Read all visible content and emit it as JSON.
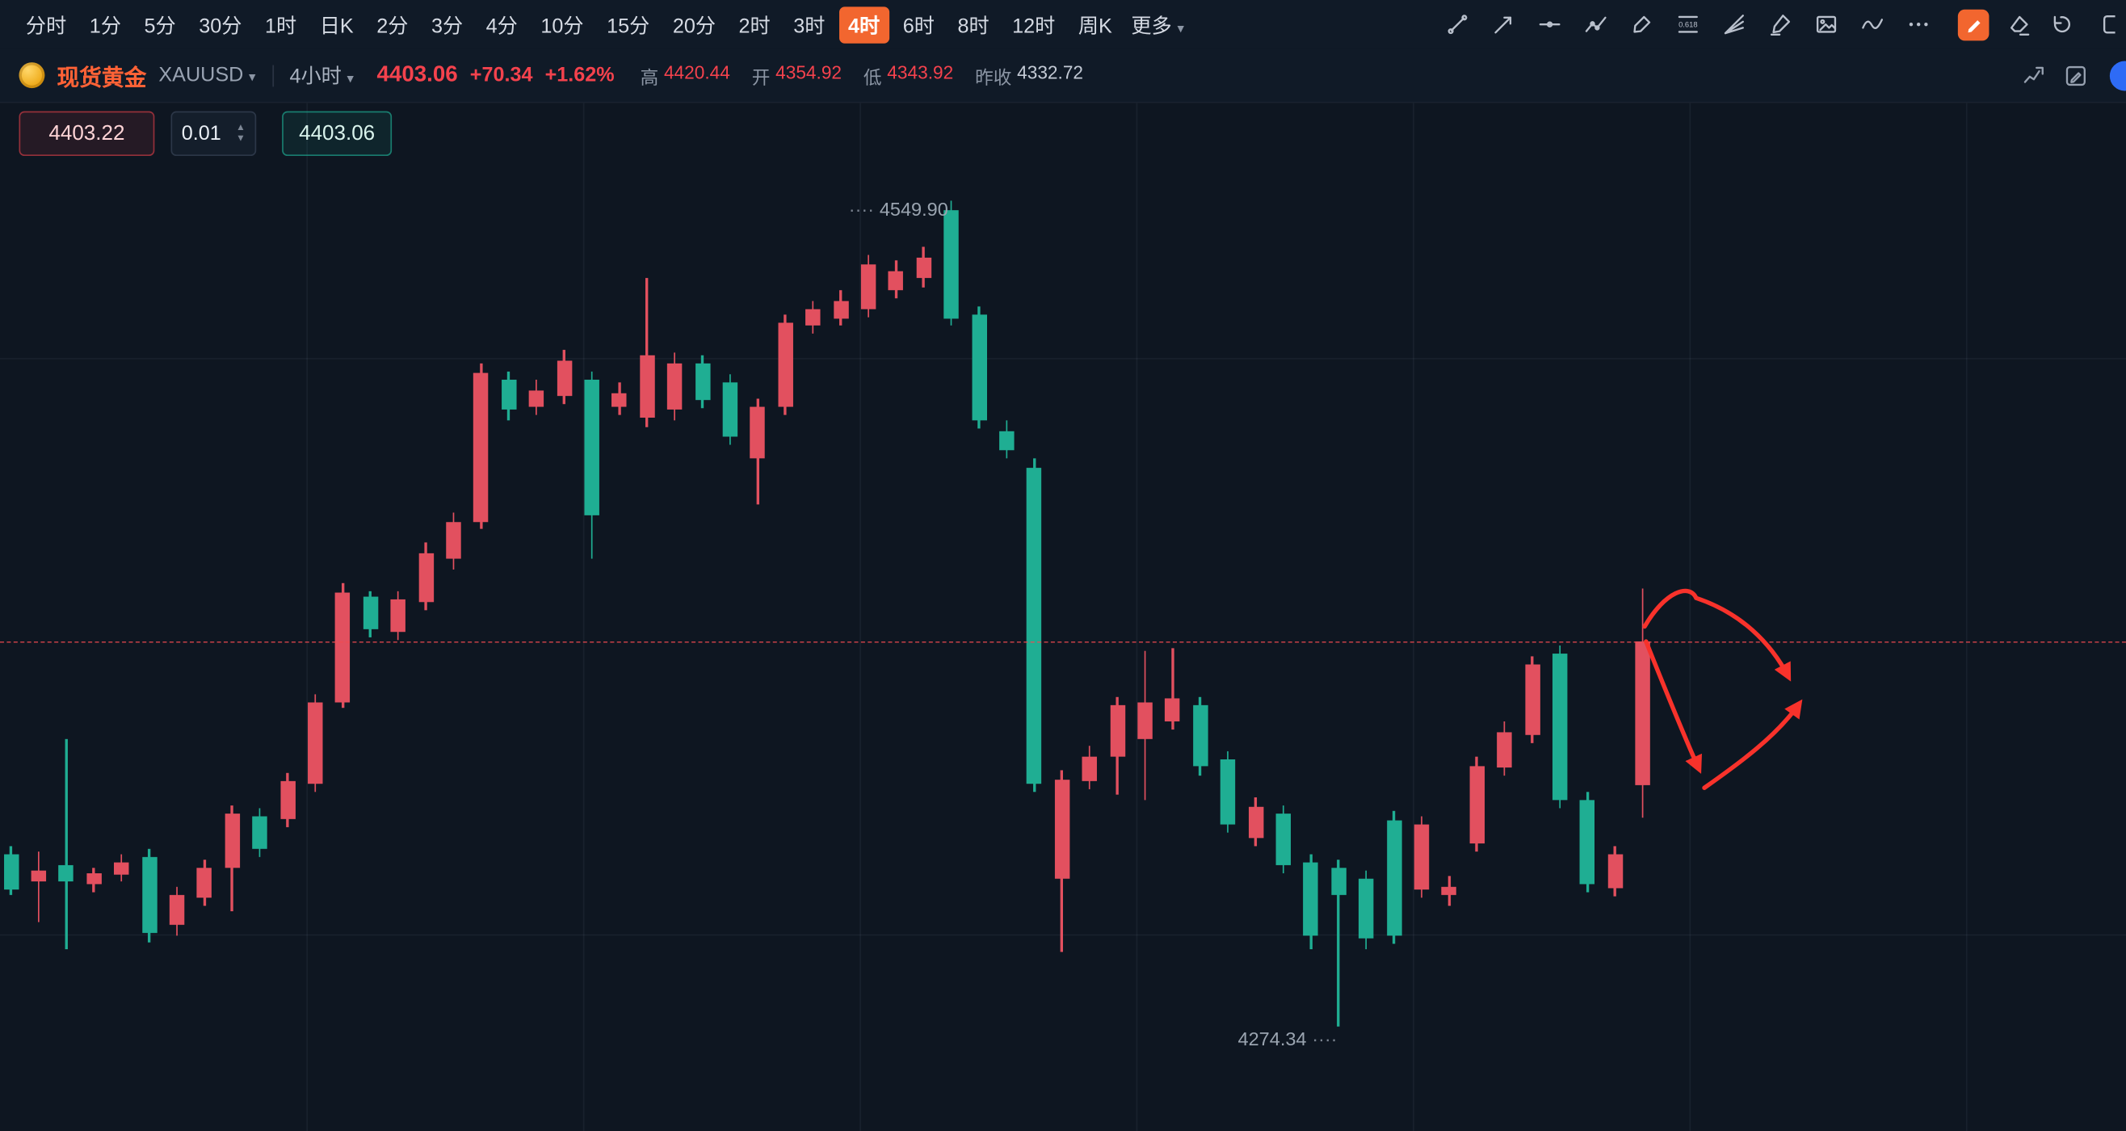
{
  "toolbar": {
    "timeframes": [
      "分时",
      "1分",
      "5分",
      "30分",
      "1时",
      "日K",
      "2分",
      "3分",
      "4分",
      "10分",
      "15分",
      "20分",
      "2时",
      "3时",
      "4时",
      "6时",
      "8时",
      "12时",
      "周K"
    ],
    "active_timeframe": "4时",
    "more_label": "更多",
    "tools": [
      "trend-line-icon",
      "ray-arrow-icon",
      "horizontal-line-icon",
      "polyline-icon",
      "brush-icon",
      "fib-icon",
      "fan-icon",
      "marker-icon",
      "image-icon",
      "wave-icon",
      "ellipsis-icon"
    ],
    "right_tools": [
      "note-edit-icon",
      "eraser-tool-icon",
      "undo-icon",
      "panel-cut-icon"
    ]
  },
  "symbol_bar": {
    "name": "现货黄金",
    "code": "XAUUSD",
    "interval": "4小时",
    "price": "4403.06",
    "change": "+70.34",
    "change_pct": "+1.62%",
    "stats": [
      {
        "label": "高",
        "value": "4420.44",
        "tone": "red"
      },
      {
        "label": "开",
        "value": "4354.92",
        "tone": "red"
      },
      {
        "label": "低",
        "value": "4343.92",
        "tone": "red"
      },
      {
        "label": "昨收",
        "value": "4332.72",
        "tone": "plain"
      }
    ],
    "icons": [
      "chart-compare-icon",
      "chart-edit-icon"
    ],
    "accent_color": "#f2662f",
    "red_color": "#f4424d"
  },
  "trade_panel": {
    "sell_price": "4403.22",
    "quantity": "0.01",
    "buy_price": "4403.06"
  },
  "chart_data": {
    "type": "candlestick",
    "symbol": "XAUUSD",
    "interval": "4小时",
    "up_color": "#e2505f",
    "down_color": "#1fae93",
    "high": 4549.9,
    "low": 4274.34,
    "high_label": "4549.90",
    "low_label": "4274.34",
    "price_line": 4403.06,
    "grid": {
      "vlines_x": [
        226,
        430,
        634,
        838,
        1042,
        1246,
        1450
      ],
      "hlines_y": [
        264,
        689
      ]
    },
    "candles": [
      [
        4331.8,
        4334.5,
        4318.2,
        4320.0
      ],
      [
        4322.7,
        4332.7,
        4309.2,
        4326.4
      ],
      [
        4328.2,
        4370.3,
        4300.1,
        4322.7
      ],
      [
        4321.8,
        4327.3,
        4319.1,
        4325.5
      ],
      [
        4325.0,
        4331.8,
        4322.7,
        4329.1
      ],
      [
        4330.9,
        4333.6,
        4302.4,
        4305.6
      ],
      [
        4308.3,
        4320.9,
        4304.7,
        4318.2
      ],
      [
        4317.3,
        4330.0,
        4314.6,
        4327.3
      ],
      [
        4327.3,
        4348.1,
        4312.8,
        4345.4
      ],
      [
        4344.4,
        4347.2,
        4330.9,
        4333.6
      ],
      [
        4343.5,
        4359.0,
        4340.8,
        4356.2
      ],
      [
        4355.3,
        4385.2,
        4352.6,
        4382.5
      ],
      [
        4382.5,
        4422.3,
        4380.7,
        4419.1
      ],
      [
        4417.8,
        4419.6,
        4404.2,
        4406.9
      ],
      [
        4406.0,
        4419.6,
        4403.3,
        4416.9
      ],
      [
        4416.0,
        4435.9,
        4413.2,
        4432.2
      ],
      [
        4430.4,
        4445.8,
        4426.8,
        4442.6
      ],
      [
        4442.6,
        4495.6,
        4440.4,
        4492.4
      ],
      [
        4490.2,
        4492.9,
        4476.6,
        4480.2
      ],
      [
        4481.1,
        4490.2,
        4478.4,
        4486.6
      ],
      [
        4484.7,
        4500.1,
        4482.0,
        4496.5
      ],
      [
        4490.2,
        4492.9,
        4430.4,
        4444.9
      ],
      [
        4481.1,
        4489.3,
        4478.4,
        4485.6
      ],
      [
        4477.5,
        4524.1,
        4474.3,
        4498.3
      ],
      [
        4480.2,
        4499.2,
        4476.6,
        4495.6
      ],
      [
        4495.6,
        4498.3,
        4480.7,
        4483.4
      ],
      [
        4489.3,
        4492.0,
        4468.5,
        4471.2
      ],
      [
        4463.9,
        4483.8,
        4448.5,
        4481.1
      ],
      [
        4481.1,
        4511.9,
        4478.4,
        4509.2
      ],
      [
        4508.3,
        4516.4,
        4505.6,
        4513.7
      ],
      [
        4510.5,
        4520.0,
        4508.3,
        4516.4
      ],
      [
        4513.7,
        4531.8,
        4511.0,
        4528.6
      ],
      [
        4520.0,
        4530.0,
        4517.3,
        4526.4
      ],
      [
        4524.1,
        4534.5,
        4520.9,
        4530.9
      ],
      [
        4546.7,
        4549.9,
        4508.3,
        4510.5
      ],
      [
        4511.9,
        4514.6,
        4473.9,
        4476.6
      ],
      [
        4473.0,
        4476.6,
        4463.9,
        4466.6
      ],
      [
        4460.8,
        4463.9,
        4352.6,
        4355.3
      ],
      [
        4323.6,
        4359.9,
        4299.2,
        4356.7
      ],
      [
        4356.2,
        4368.0,
        4353.5,
        4364.4
      ],
      [
        4364.4,
        4384.3,
        4351.7,
        4381.6
      ],
      [
        4370.3,
        4399.7,
        4349.9,
        4382.5
      ],
      [
        4376.1,
        4400.6,
        4373.4,
        4383.8
      ],
      [
        4381.6,
        4384.3,
        4358.0,
        4361.2
      ],
      [
        4363.5,
        4366.2,
        4339.0,
        4341.7
      ],
      [
        4337.2,
        4350.8,
        4334.5,
        4347.6
      ],
      [
        4345.4,
        4348.1,
        4325.5,
        4328.2
      ],
      [
        4329.1,
        4331.8,
        4300.1,
        4304.7
      ],
      [
        4327.3,
        4330.0,
        4274.34,
        4318.2
      ],
      [
        4323.6,
        4326.4,
        4300.1,
        4303.8
      ],
      [
        4343.1,
        4346.3,
        4302.0,
        4304.7
      ],
      [
        4320.0,
        4344.4,
        4317.3,
        4341.7
      ],
      [
        4318.2,
        4324.6,
        4314.6,
        4320.9
      ],
      [
        4335.4,
        4364.4,
        4332.7,
        4361.2
      ],
      [
        4360.8,
        4376.1,
        4358.0,
        4372.5
      ],
      [
        4371.6,
        4397.9,
        4368.9,
        4395.1
      ],
      [
        4398.8,
        4401.5,
        4347.2,
        4349.9
      ],
      [
        4349.9,
        4352.6,
        4319.1,
        4321.8
      ],
      [
        4320.5,
        4334.5,
        4317.7,
        4331.8
      ],
      [
        4354.92,
        4420.44,
        4343.92,
        4403.06
      ]
    ]
  },
  "drawings": {
    "arrow_color": "#f8322b",
    "arrow_paths": [
      "M1213,462 C1228,436 1246,430 1251,441 C1284,452 1306,474 1319,499",
      "M1214,473 C1228,508 1243,545 1253,567",
      "M1257,581 C1284,562 1310,543 1327,519"
    ]
  }
}
